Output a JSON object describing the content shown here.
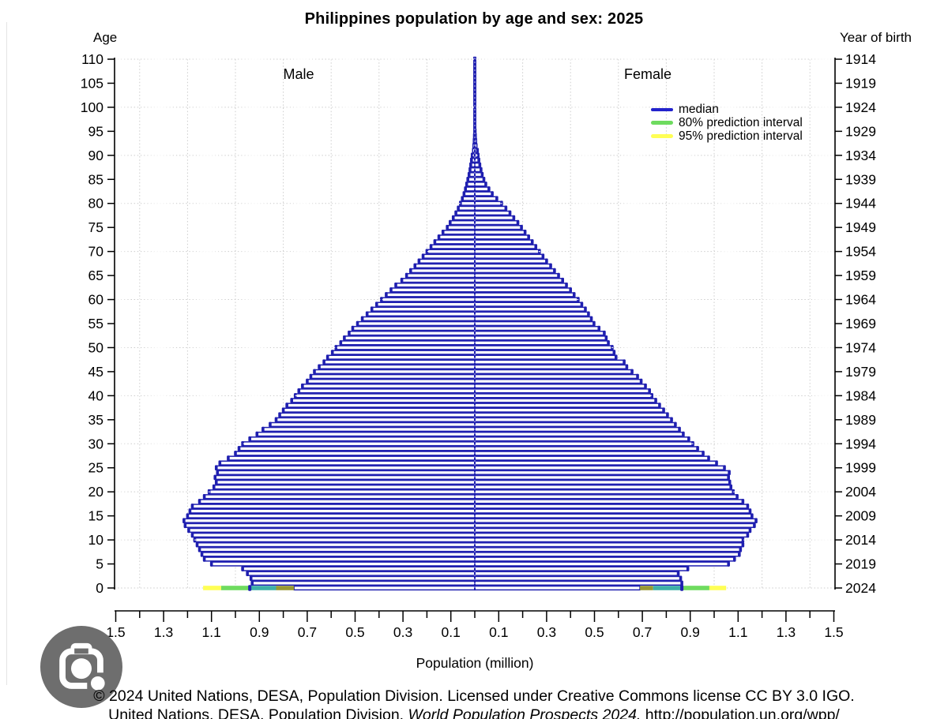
{
  "header": {
    "title": "Philippines population by age and sex: 2025",
    "left_axis_title": "Age",
    "right_axis_title": "Year of birth"
  },
  "panel_labels": {
    "male": "Male",
    "female": "Female"
  },
  "legend": {
    "items": [
      {
        "label": "median",
        "color": "#2222cc"
      },
      {
        "label": "80% prediction interval",
        "color": "#6edb5f"
      },
      {
        "label": "95% prediction interval",
        "color": "#ffff55"
      }
    ]
  },
  "x_axis": {
    "label": "Population (million)",
    "labeled_values_each_side": [
      0.1,
      0.3,
      0.5,
      0.7,
      0.9,
      1.1,
      1.3,
      1.5
    ]
  },
  "footer": {
    "line1": "© 2024 United Nations, DESA, Population Division. Licensed under Creative Commons license CC BY 3.0 IGO.",
    "line2_pre": "United Nations, DESA, Population Division. ",
    "line2_italic": "World Population Prospects 2024.",
    "line2_post": " http://population.un.org/wpp/"
  },
  "overlay": {
    "camera_button_icon": "camera-lens-icon"
  },
  "chart_data": {
    "type": "bar",
    "variant": "population-pyramid",
    "title": "Philippines population by age and sex: 2025",
    "xlabel": "Population (million)",
    "ylabel_left": "Age",
    "ylabel_right": "Year of birth",
    "unit": "million persons per single year of age",
    "x_range_each_side": [
      0,
      1.5
    ],
    "age_min": 0,
    "age_max": 110,
    "age_step": 1,
    "age_ticks": [
      0,
      5,
      10,
      15,
      20,
      25,
      30,
      35,
      40,
      45,
      50,
      55,
      60,
      65,
      70,
      75,
      80,
      85,
      90,
      95,
      100,
      105,
      110
    ],
    "year_ticks": [
      "1914",
      "1919",
      "1924",
      "1929",
      "1934",
      "1939",
      "1944",
      "1949",
      "1954",
      "1959",
      "1964",
      "1969",
      "1974",
      "1979",
      "1984",
      "1989",
      "1994",
      "1999",
      "2004",
      "2009",
      "2014",
      "2019",
      "2024"
    ],
    "gridlines": {
      "x_every_million": 0.2,
      "age_every_years": 10,
      "style": "dotted"
    },
    "legend_position": "upper-right",
    "series": [
      {
        "name": "Male",
        "side": "left",
        "values": [
          0.94,
          0.93,
          0.935,
          0.95,
          0.97,
          1.1,
          1.13,
          1.14,
          1.15,
          1.16,
          1.17,
          1.18,
          1.195,
          1.21,
          1.215,
          1.2,
          1.19,
          1.18,
          1.15,
          1.13,
          1.11,
          1.09,
          1.08,
          1.085,
          1.075,
          1.08,
          1.065,
          1.03,
          1.0,
          0.985,
          0.97,
          0.94,
          0.91,
          0.885,
          0.855,
          0.83,
          0.815,
          0.8,
          0.785,
          0.765,
          0.75,
          0.735,
          0.72,
          0.7,
          0.685,
          0.67,
          0.65,
          0.63,
          0.615,
          0.595,
          0.58,
          0.56,
          0.545,
          0.525,
          0.51,
          0.49,
          0.47,
          0.45,
          0.43,
          0.41,
          0.39,
          0.37,
          0.35,
          0.33,
          0.305,
          0.285,
          0.268,
          0.25,
          0.233,
          0.216,
          0.2,
          0.183,
          0.167,
          0.15,
          0.133,
          0.115,
          0.103,
          0.09,
          0.079,
          0.069,
          0.06,
          0.052,
          0.045,
          0.039,
          0.034,
          0.029,
          0.024,
          0.02,
          0.017,
          0.014,
          0.011,
          0.009,
          0.0075,
          0.006,
          0.005,
          0.004,
          0.0033,
          0.0027,
          0.0022,
          0.0018,
          0.0015,
          0.0012,
          0.001,
          0.0009,
          0.0008,
          0.0007,
          0.0006,
          0.0005,
          0.0004,
          0.0003,
          0.0003
        ]
      },
      {
        "name": "Female",
        "side": "right",
        "values": [
          0.865,
          0.865,
          0.86,
          0.85,
          0.89,
          1.06,
          1.085,
          1.105,
          1.11,
          1.12,
          1.12,
          1.14,
          1.15,
          1.168,
          1.175,
          1.158,
          1.15,
          1.14,
          1.12,
          1.096,
          1.08,
          1.07,
          1.065,
          1.06,
          1.063,
          1.043,
          1.01,
          0.977,
          0.954,
          0.931,
          0.911,
          0.894,
          0.871,
          0.855,
          0.838,
          0.822,
          0.805,
          0.789,
          0.772,
          0.756,
          0.74,
          0.73,
          0.713,
          0.695,
          0.68,
          0.657,
          0.635,
          0.624,
          0.59,
          0.582,
          0.574,
          0.558,
          0.549,
          0.541,
          0.519,
          0.498,
          0.487,
          0.475,
          0.462,
          0.447,
          0.432,
          0.415,
          0.4,
          0.383,
          0.367,
          0.35,
          0.333,
          0.317,
          0.3,
          0.285,
          0.27,
          0.255,
          0.24,
          0.225,
          0.21,
          0.195,
          0.18,
          0.163,
          0.147,
          0.13,
          0.112,
          0.092,
          0.073,
          0.059,
          0.046,
          0.038,
          0.031,
          0.026,
          0.021,
          0.017,
          0.014,
          0.011,
          0.009,
          0.0075,
          0.006,
          0.005,
          0.004,
          0.0033,
          0.0027,
          0.0022,
          0.0018,
          0.0015,
          0.0012,
          0.001,
          0.0009,
          0.0008,
          0.0006,
          0.0005,
          0.0004,
          0.0003,
          0.0003
        ]
      }
    ],
    "prediction_intervals_age0": {
      "male": {
        "median": 0.94,
        "p80": [
          0.83,
          1.06
        ],
        "p95": [
          0.755,
          1.135
        ]
      },
      "female": {
        "median": 0.865,
        "p80": [
          0.745,
          0.98
        ],
        "p95": [
          0.69,
          1.05
        ]
      }
    },
    "colors": {
      "median_bar": "#1f1fb0",
      "p80": "#6edb5f",
      "p95": "#ffff55",
      "p80_over_median": "#3fb0a8",
      "p95_over_median": "#999933",
      "gridline": "#cccccc",
      "axis": "#000000"
    }
  }
}
